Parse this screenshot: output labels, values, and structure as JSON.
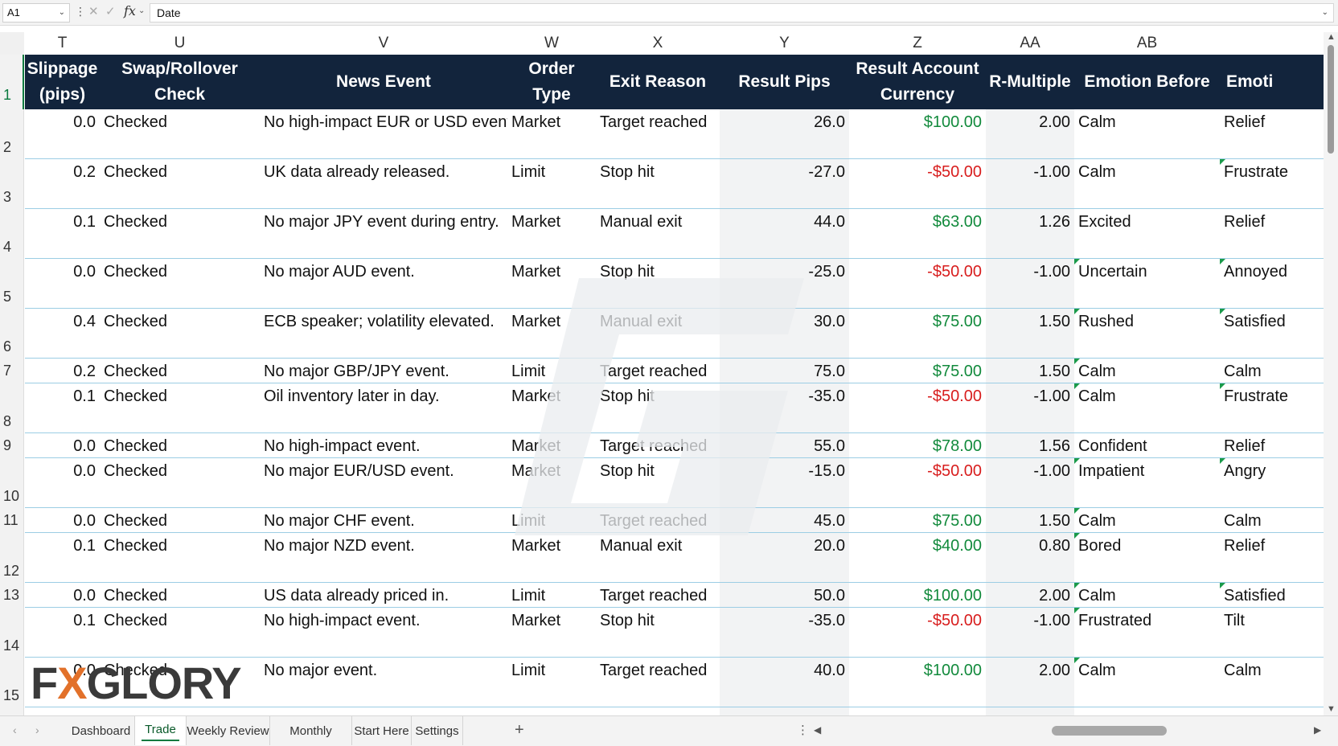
{
  "formula_bar": {
    "name_box": "A1",
    "chevron": "⌄",
    "dots": "⋮",
    "cancel_symbol": "✕",
    "enter_symbol": "✓",
    "fx": "fx",
    "formula": "Date"
  },
  "columns": [
    {
      "letter": "T",
      "header": "Slippage\n(pips)"
    },
    {
      "letter": "U",
      "header": "Swap/Rollover\nCheck"
    },
    {
      "letter": "V",
      "header": "News Event"
    },
    {
      "letter": "W",
      "header": "Order Type"
    },
    {
      "letter": "X",
      "header": "Exit Reason"
    },
    {
      "letter": "Y",
      "header": "Result Pips"
    },
    {
      "letter": "Z",
      "header": "Result Account\nCurrency"
    },
    {
      "letter": "AA",
      "header": "R-Multiple"
    },
    {
      "letter": "AB",
      "header": "Emotion Before"
    },
    {
      "letter": "",
      "header": "Emoti"
    }
  ],
  "header_row_number": "1",
  "rows": [
    {
      "num": "2",
      "slippage": "0.0",
      "swap": "Checked",
      "news": "No high-impact EUR or USD event.",
      "order": "Market",
      "exit": "Target reached",
      "pips": "26.0",
      "result": "$100.00",
      "r": "2.00",
      "emotion_before": "Calm",
      "emotion_after": "Relief"
    },
    {
      "num": "3",
      "slippage": "0.2",
      "swap": "Checked",
      "news": "UK data already released.",
      "order": "Limit",
      "exit": "Stop hit",
      "pips": "-27.0",
      "result": "-$50.00",
      "r": "-1.00",
      "emotion_before": "Calm",
      "emotion_after": "Frustrate"
    },
    {
      "num": "4",
      "slippage": "0.1",
      "swap": "Checked",
      "news": "No major JPY event during entry.",
      "order": "Market",
      "exit": "Manual exit",
      "pips": "44.0",
      "result": "$63.00",
      "r": "1.26",
      "emotion_before": "Excited",
      "emotion_after": "Relief"
    },
    {
      "num": "5",
      "slippage": "0.0",
      "swap": "Checked",
      "news": "No major AUD event.",
      "order": "Market",
      "exit": "Stop hit",
      "pips": "-25.0",
      "result": "-$50.00",
      "r": "-1.00",
      "emotion_before": "Uncertain",
      "emotion_after": "Annoyed"
    },
    {
      "num": "6",
      "slippage": "0.4",
      "swap": "Checked",
      "news": "ECB speaker; volatility elevated.",
      "order": "Market",
      "exit": "Manual exit",
      "pips": "30.0",
      "result": "$75.00",
      "r": "1.50",
      "emotion_before": "Rushed",
      "emotion_after": "Satisfied"
    },
    {
      "num": "7",
      "slippage": "0.2",
      "swap": "Checked",
      "news": "No major GBP/JPY event.",
      "order": "Limit",
      "exit": "Target reached",
      "pips": "75.0",
      "result": "$75.00",
      "r": "1.50",
      "emotion_before": "Calm",
      "emotion_after": "Calm"
    },
    {
      "num": "8",
      "slippage": "0.1",
      "swap": "Checked",
      "news": "Oil inventory later in day.",
      "order": "Market",
      "exit": "Stop hit",
      "pips": "-35.0",
      "result": "-$50.00",
      "r": "-1.00",
      "emotion_before": "Calm",
      "emotion_after": "Frustrate"
    },
    {
      "num": "9",
      "slippage": "0.0",
      "swap": "Checked",
      "news": "No high-impact event.",
      "order": "Market",
      "exit": "Target reached",
      "pips": "55.0",
      "result": "$78.00",
      "r": "1.56",
      "emotion_before": "Confident",
      "emotion_after": "Relief"
    },
    {
      "num": "10",
      "slippage": "0.0",
      "swap": "Checked",
      "news": "No major EUR/USD event.",
      "order": "Market",
      "exit": "Stop hit",
      "pips": "-15.0",
      "result": "-$50.00",
      "r": "-1.00",
      "emotion_before": "Impatient",
      "emotion_after": "Angry"
    },
    {
      "num": "11",
      "slippage": "0.0",
      "swap": "Checked",
      "news": "No major CHF event.",
      "order": "Limit",
      "exit": "Target reached",
      "pips": "45.0",
      "result": "$75.00",
      "r": "1.50",
      "emotion_before": "Calm",
      "emotion_after": "Calm"
    },
    {
      "num": "12",
      "slippage": "0.1",
      "swap": "Checked",
      "news": "No major NZD event.",
      "order": "Market",
      "exit": "Manual exit",
      "pips": "20.0",
      "result": "$40.00",
      "r": "0.80",
      "emotion_before": "Bored",
      "emotion_after": "Relief"
    },
    {
      "num": "13",
      "slippage": "0.0",
      "swap": "Checked",
      "news": "US data already priced in.",
      "order": "Limit",
      "exit": "Target reached",
      "pips": "50.0",
      "result": "$100.00",
      "r": "2.00",
      "emotion_before": "Calm",
      "emotion_after": "Satisfied"
    },
    {
      "num": "14",
      "slippage": "0.1",
      "swap": "Checked",
      "news": "No high-impact event.",
      "order": "Market",
      "exit": "Stop hit",
      "pips": "-35.0",
      "result": "-$50.00",
      "r": "-1.00",
      "emotion_before": "Frustrated",
      "emotion_after": "Tilt"
    },
    {
      "num": "15",
      "slippage": "0.0",
      "swap": "Checked",
      "news": "No major event.",
      "order": "Limit",
      "exit": "Target reached",
      "pips": "40.0",
      "result": "$100.00",
      "r": "2.00",
      "emotion_before": "Calm",
      "emotion_after": "Calm"
    }
  ],
  "logo": {
    "part1": "F",
    "x": "X",
    "part2": "GLORY"
  },
  "sheet_tabs": [
    "Dashboard",
    "Trade Log",
    "Weekly Review",
    "Monthly Review",
    "Start Here",
    "Settings"
  ],
  "active_tab": "Trade Log",
  "add_sheet": "+",
  "colors": {
    "header_bg": "#12243c",
    "positive": "#128a3c",
    "negative": "#d81d1d",
    "row_border": "#9ccde4",
    "note_marker": "#1a9a4a"
  }
}
